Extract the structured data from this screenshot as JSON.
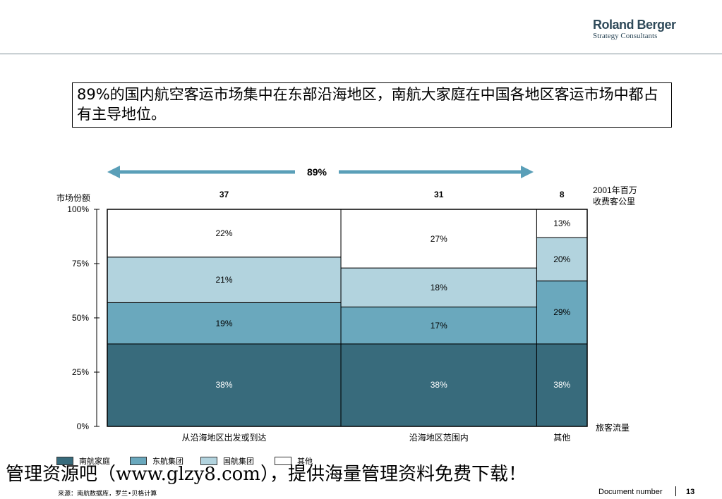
{
  "logo": {
    "brand": "Roland Berger",
    "sub": "Strategy Consultants"
  },
  "title": "89%的国内航空客运市场集中在东部沿海地区，南航大家庭在中国各地区客运市场中都占有主导地位。",
  "arrow_label": "89%",
  "colors": {
    "nanhang": "#386b7c",
    "donghang": "#6aa8bd",
    "guohang": "#b2d3de",
    "other": "#ffffff",
    "arrow": "#5a9fb8"
  },
  "chart_data": {
    "type": "bar",
    "subtype": "marimekko",
    "ylabel": "市场份额",
    "xlabel": "旅客流量",
    "width_label": "2001年百万\n收费客公里",
    "yticks": [
      "0%",
      "25%",
      "50%",
      "75%",
      "100%"
    ],
    "categories": [
      "从沿海地区出发或到达",
      "沿海地区范围内",
      "其他"
    ],
    "widths": [
      37,
      31,
      8
    ],
    "series": [
      {
        "name": "南航家庭",
        "values": [
          38,
          38,
          38
        ],
        "labels": [
          "38%",
          "38%",
          "38%"
        ]
      },
      {
        "name": "东航集团",
        "values": [
          19,
          17,
          29
        ],
        "labels": [
          "19%",
          "17%",
          "29%"
        ]
      },
      {
        "name": "国航集团",
        "values": [
          21,
          18,
          20
        ],
        "labels": [
          "21%",
          "18%",
          "20%"
        ]
      },
      {
        "name": "其他",
        "values": [
          22,
          27,
          13
        ],
        "labels": [
          "22%",
          "27%",
          "13%"
        ]
      }
    ]
  },
  "legend": [
    "南航家庭",
    "东航集团",
    "国航集团",
    "其他"
  ],
  "watermark": "管理资源吧（www.glzy8.com），提供海量管理资料免费下载！",
  "source": "来源：南航数据库，罗兰•贝格计算",
  "footer": {
    "doc_label": "Document number",
    "page": "13"
  }
}
